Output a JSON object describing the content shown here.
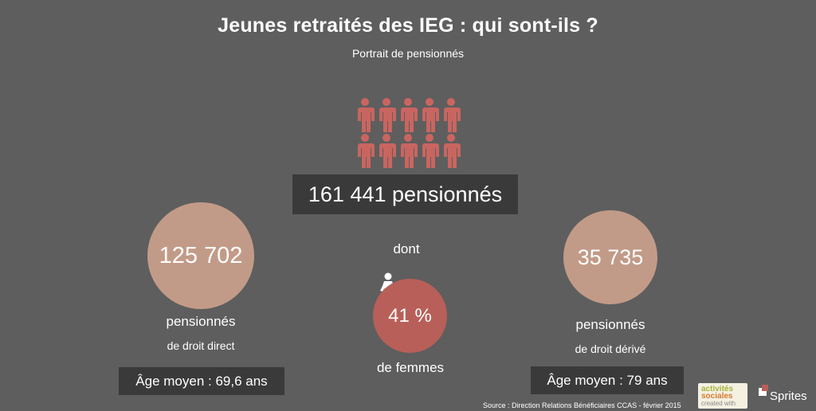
{
  "header": {
    "title": "Jeunes retraités des IEG : qui sont-ils ?",
    "subtitle": "Portrait de pensionnés"
  },
  "total": {
    "value": "161 441 pensionnés"
  },
  "dont_label": "dont",
  "direct": {
    "value": "125 702",
    "label": "pensionnés",
    "sublabel": "de droit direct",
    "age": "Âge moyen : 69,6 ans"
  },
  "women": {
    "value": "41 %",
    "label": "de femmes"
  },
  "derive": {
    "value": "35 735",
    "label": "pensionnés",
    "sublabel": "de droit dérivé",
    "age": "Âge moyen : 79 ans"
  },
  "source": "Source : Direction Relations Bénéficiaires CCAS - février 2015",
  "logos": {
    "activites_line1": "activités",
    "activites_line2": "sociales",
    "activites_line3": "created with",
    "sprites": "Sprites"
  },
  "colors": {
    "background": "#5e5e5e",
    "accent": "#c96560",
    "circle_tan": "#c29b88",
    "circle_red": "#b85f59",
    "box_dark": "#3a3a3a"
  },
  "icons": {
    "people": "person-icon",
    "woman": "woman-icon"
  }
}
